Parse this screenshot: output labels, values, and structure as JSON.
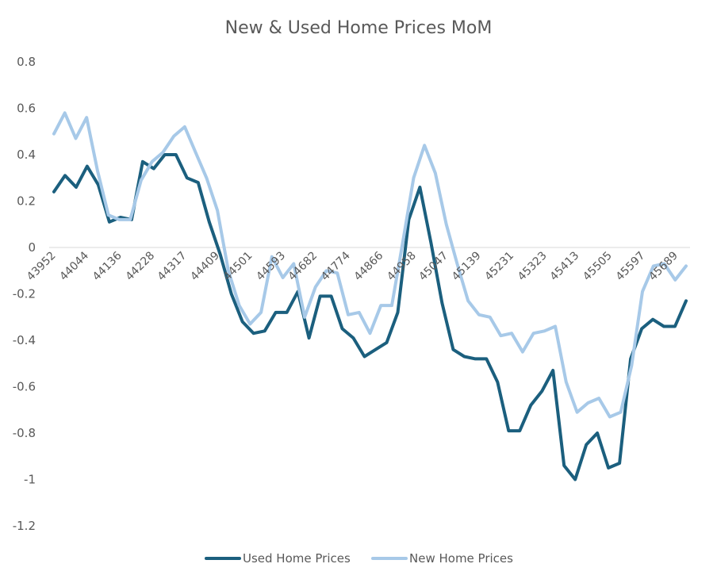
{
  "chart_data": {
    "type": "line",
    "title": "New & Used Home Prices MoM",
    "xlabel": "",
    "ylabel": "",
    "ylim": [
      -1.2,
      0.8
    ],
    "yticks": [
      0.8,
      0.6,
      0.4,
      0.2,
      0,
      -0.2,
      -0.4,
      -0.6,
      -0.8,
      -1,
      -1.2
    ],
    "ytick_labels": [
      "0.8",
      "0.6",
      "0.4",
      "0.2",
      "0",
      "-0.2",
      "-0.4",
      "-0.6",
      "-0.8",
      "-1",
      "-1.2"
    ],
    "x_start": 43952,
    "x_end": 45717,
    "xticks": [
      43952,
      44044,
      44136,
      44228,
      44317,
      44409,
      44501,
      44593,
      44682,
      44774,
      44866,
      44958,
      45047,
      45139,
      45231,
      45323,
      45413,
      45505,
      45597,
      45689
    ],
    "grid": false,
    "legend_position": "bottom",
    "series": [
      {
        "name": "Used Home Prices",
        "color": "#1b5f7e",
        "values": [
          0.24,
          0.31,
          0.26,
          0.35,
          0.27,
          0.11,
          0.13,
          0.12,
          0.37,
          0.34,
          0.4,
          0.4,
          0.3,
          0.28,
          0.11,
          -0.03,
          -0.2,
          -0.32,
          -0.37,
          -0.36,
          -0.28,
          -0.28,
          -0.19,
          -0.39,
          -0.21,
          -0.21,
          -0.35,
          -0.39,
          -0.47,
          -0.44,
          -0.41,
          -0.28,
          0.12,
          0.26,
          0.02,
          -0.24,
          -0.44,
          -0.47,
          -0.48,
          -0.48,
          -0.58,
          -0.79,
          -0.79,
          -0.68,
          -0.62,
          -0.53,
          -0.94,
          -1.0,
          -0.85,
          -0.8,
          -0.95,
          -0.93,
          -0.48,
          -0.35,
          -0.31,
          -0.34,
          -0.34,
          -0.23
        ]
      },
      {
        "name": "New Home Prices",
        "color": "#a7c9e8",
        "values": [
          0.49,
          0.58,
          0.47,
          0.56,
          0.33,
          0.14,
          0.12,
          0.12,
          0.29,
          0.37,
          0.41,
          0.48,
          0.52,
          0.41,
          0.3,
          0.16,
          -0.1,
          -0.25,
          -0.33,
          -0.28,
          -0.04,
          -0.13,
          -0.07,
          -0.3,
          -0.17,
          -0.1,
          -0.11,
          -0.29,
          -0.28,
          -0.37,
          -0.25,
          -0.25,
          0.02,
          0.3,
          0.44,
          0.32,
          0.1,
          -0.07,
          -0.23,
          -0.29,
          -0.3,
          -0.38,
          -0.37,
          -0.45,
          -0.37,
          -0.36,
          -0.34,
          -0.58,
          -0.71,
          -0.67,
          -0.65,
          -0.73,
          -0.71,
          -0.51,
          -0.19,
          -0.08,
          -0.07,
          -0.14,
          -0.08
        ]
      }
    ]
  }
}
